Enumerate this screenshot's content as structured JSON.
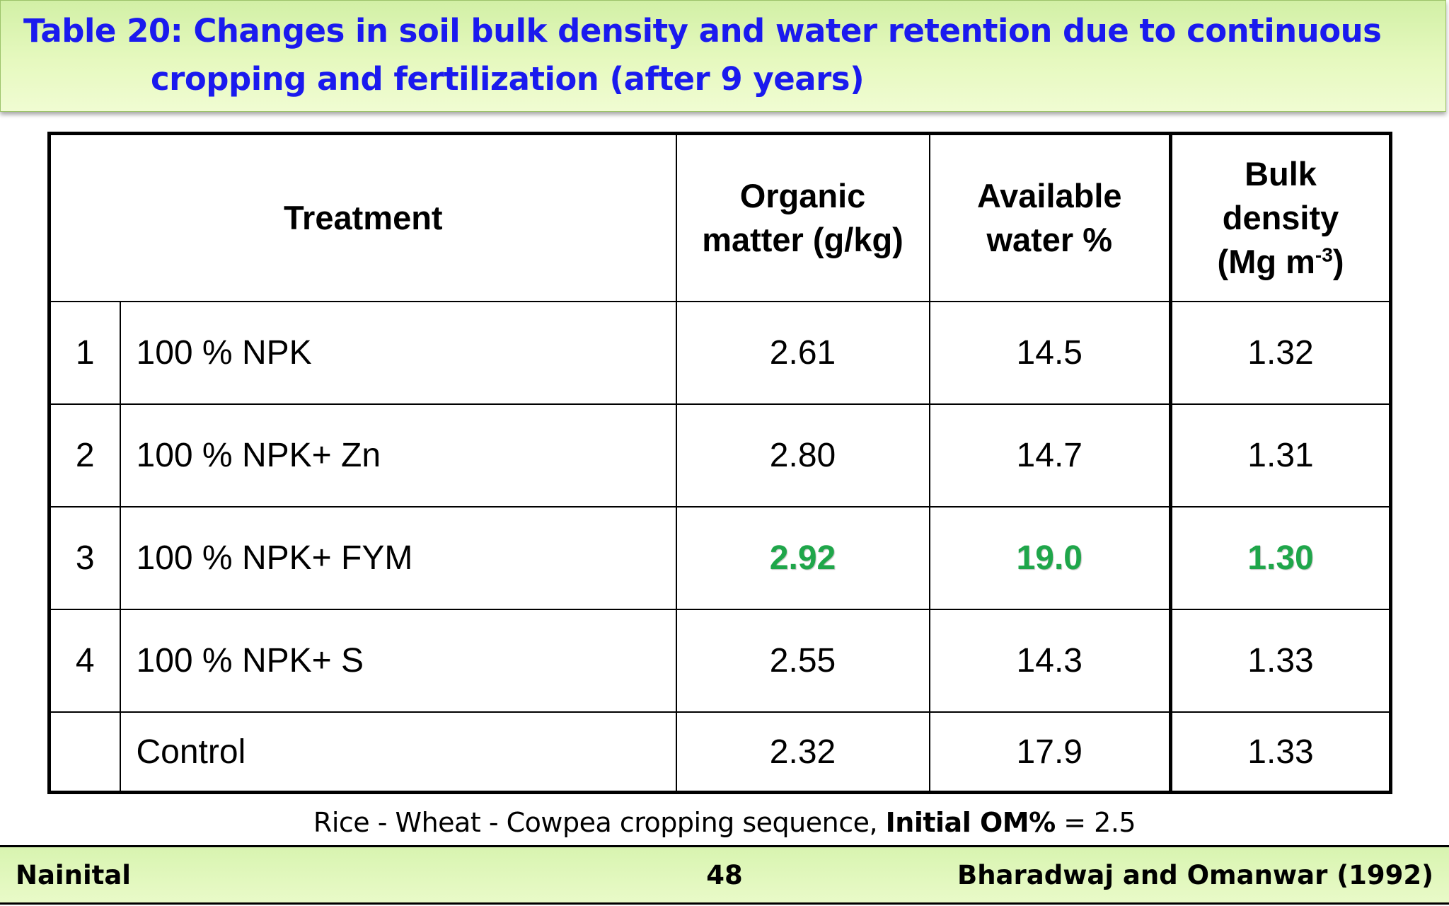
{
  "title": {
    "line1": "Table 20: Changes in soil bulk density and water retention due to continuous",
    "line2": "cropping and fertilization (after 9 years)"
  },
  "table": {
    "headers": {
      "treatment": "Treatment",
      "organic_matter": [
        "Organic",
        "matter (g/kg)"
      ],
      "available_water": [
        "Available",
        "water %"
      ],
      "bulk_density": [
        "Bulk",
        "density",
        "(Mg m",
        "-3",
        ")"
      ]
    },
    "rows": [
      {
        "no": "1",
        "treatment": "100 % NPK",
        "organic_matter": "2.61",
        "available_water": "14.5",
        "bulk_density": "1.32",
        "highlight": false
      },
      {
        "no": "2",
        "treatment": "100 % NPK+ Zn",
        "organic_matter": "2.80",
        "available_water": "14.7",
        "bulk_density": "1.31",
        "highlight": false
      },
      {
        "no": "3",
        "treatment": "100 % NPK+ FYM",
        "organic_matter": "2.92",
        "available_water": "19.0",
        "bulk_density": "1.30",
        "highlight": true
      },
      {
        "no": "4",
        "treatment": "100 % NPK+ S",
        "organic_matter": "2.55",
        "available_water": "14.3",
        "bulk_density": "1.33",
        "highlight": false
      },
      {
        "no": "",
        "treatment": "Control",
        "organic_matter": "2.32",
        "available_water": "17.9",
        "bulk_density": "1.33",
        "highlight": false
      }
    ],
    "highlight_color": "#1fa64a"
  },
  "note": {
    "text": "Rice - Wheat - Cowpea cropping sequence, ",
    "bold": "Initial OM%",
    "value": " = 2.5"
  },
  "footer": {
    "location": "Nainital",
    "page": "48",
    "citation": "Bharadwaj and Omanwar (1992)"
  }
}
